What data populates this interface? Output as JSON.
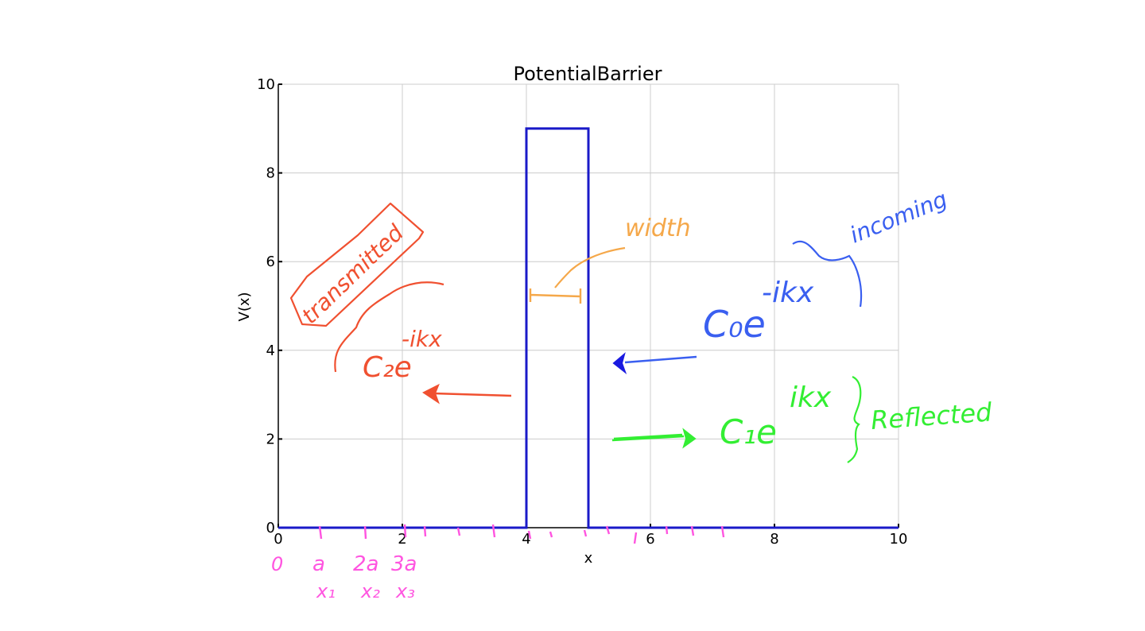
{
  "chart_data": {
    "type": "line",
    "title": "PotentialBarrier",
    "xlabel": "x",
    "ylabel": "V(x)",
    "xlim": [
      0,
      10
    ],
    "ylim": [
      0,
      10
    ],
    "x_ticks": [
      "0",
      "2",
      "4",
      "6",
      "8",
      "10"
    ],
    "y_ticks": [
      "0",
      "2",
      "4",
      "6",
      "8",
      "10"
    ],
    "grid": true,
    "series": [
      {
        "x": [
          0,
          4,
          4,
          5,
          5,
          10
        ],
        "y": [
          0,
          0,
          9,
          9,
          0,
          0
        ],
        "color": "#1a1ac8"
      }
    ]
  },
  "annotations": {
    "transmitted_label": "transmitted",
    "transmitted_formula_base": "C₂e",
    "transmitted_formula_exp": "-ikx",
    "width_label": "width",
    "incoming_label": "incoming",
    "incoming_formula_base": "C₀e",
    "incoming_formula_exp": "-ikx",
    "reflected_label": "Reflected",
    "reflected_formula_base": "C₁e",
    "reflected_formula_exp": "ikx",
    "axis_marks_row1": [
      "0",
      "a",
      "2a",
      "3a"
    ],
    "axis_marks_row2": [
      "x₁",
      "x₂",
      "x₃"
    ]
  },
  "colors": {
    "barrier": "#1a1ac8",
    "transmitted": "#f05030",
    "width": "#f5a84a",
    "incoming": "#3a5ff0",
    "reflected": "#33ee33",
    "marks": "#ff55e0",
    "grid": "#cccccc"
  }
}
